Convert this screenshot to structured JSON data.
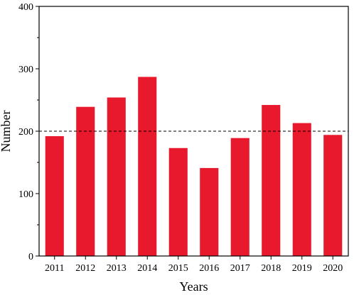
{
  "chart_data": {
    "type": "bar",
    "xlabel": "Years",
    "ylabel": "Number",
    "categories": [
      "2011",
      "2012",
      "2013",
      "2014",
      "2015",
      "2016",
      "2017",
      "2018",
      "2019",
      "2020"
    ],
    "values": [
      192,
      239,
      254,
      287,
      173,
      141,
      189,
      242,
      213,
      194
    ],
    "ylim": [
      0,
      400
    ],
    "yticks": [
      "0",
      "100",
      "200",
      "300",
      "400"
    ],
    "reference_line": {
      "value": 200,
      "style": "dashed"
    },
    "bar_color": "#e8192c",
    "grid": false,
    "legend": "none"
  }
}
